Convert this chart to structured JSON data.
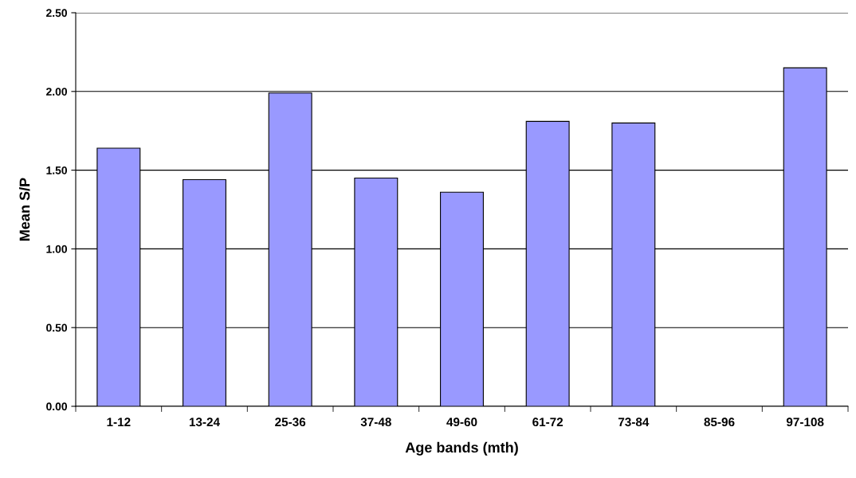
{
  "chart_data": {
    "type": "bar",
    "xlabel": "Age bands (mth)",
    "ylabel": "Mean S/P",
    "categories": [
      "1-12",
      "13-24",
      "25-36",
      "37-48",
      "49-60",
      "61-72",
      "73-84",
      "85-96",
      "97-108"
    ],
    "values": [
      1.64,
      1.44,
      1.99,
      1.45,
      1.36,
      1.81,
      1.8,
      null,
      2.15
    ],
    "color": "#9999ff",
    "ylim": [
      0,
      2.5
    ],
    "yticks": [
      {
        "value": 0,
        "label": "0.00"
      },
      {
        "value": 0.5,
        "label": "0.50"
      },
      {
        "value": 1,
        "label": "1.00"
      },
      {
        "value": 1.5,
        "label": "1.50"
      },
      {
        "value": 2,
        "label": "2.00"
      },
      {
        "value": 2.5,
        "label": "2.50"
      }
    ],
    "grid": "y"
  }
}
